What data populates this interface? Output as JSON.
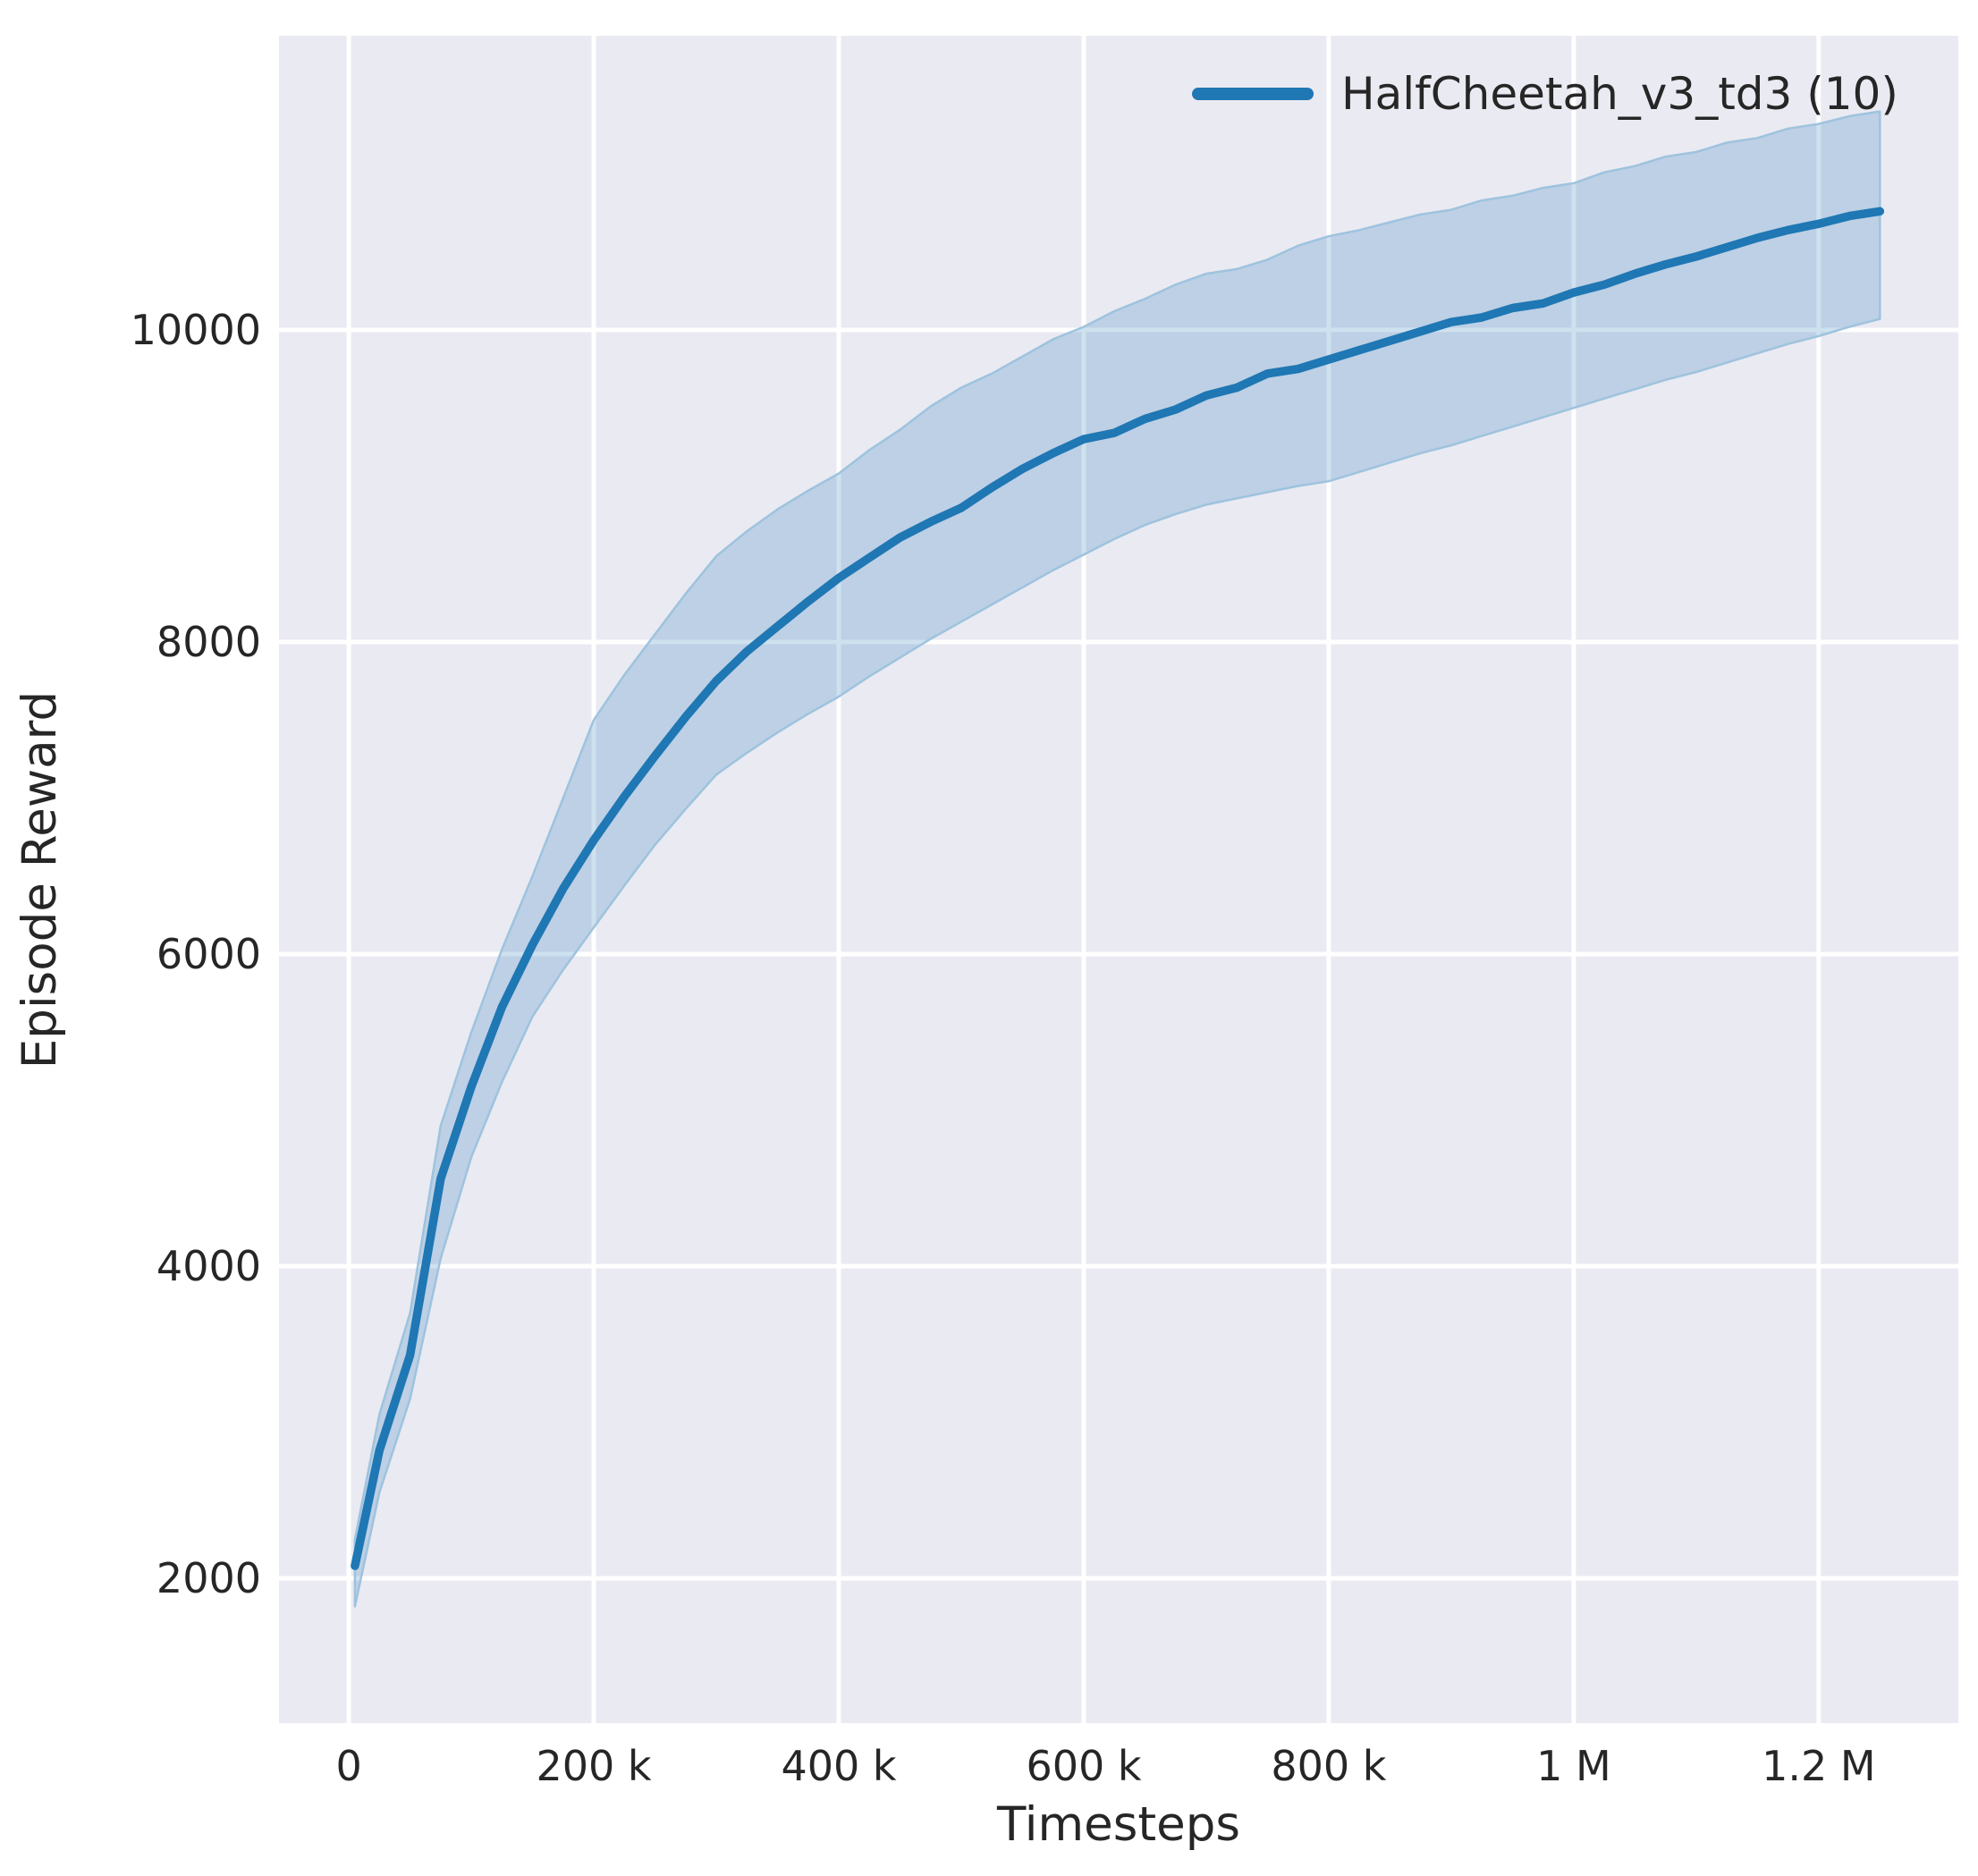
{
  "figure": {
    "background": "#ffffff",
    "plot_background": "#eaeaf2",
    "grid_color": "#ffffff",
    "text_color": "#262626"
  },
  "chart_data": {
    "type": "line",
    "title": "",
    "xlabel": "Timesteps",
    "ylabel": "Episode Reward",
    "grid": true,
    "legend": {
      "position": "upper right",
      "entries": [
        {
          "label": "HalfCheetah_v3_td3 (10)",
          "color": "#1f77b4"
        }
      ]
    },
    "xlim": [
      -57000,
      1314000
    ],
    "ylim": [
      1072,
      11885
    ],
    "xticks": [
      {
        "value": 0,
        "label": "0"
      },
      {
        "value": 200000,
        "label": "200 k"
      },
      {
        "value": 400000,
        "label": "400 k"
      },
      {
        "value": 600000,
        "label": "600 k"
      },
      {
        "value": 800000,
        "label": "800 k"
      },
      {
        "value": 1000000,
        "label": "1 M"
      },
      {
        "value": 1200000,
        "label": "1.2 M"
      }
    ],
    "yticks": [
      {
        "value": 2000,
        "label": "2000"
      },
      {
        "value": 4000,
        "label": "4000"
      },
      {
        "value": 6000,
        "label": "6000"
      },
      {
        "value": 8000,
        "label": "8000"
      },
      {
        "value": 10000,
        "label": "10000"
      }
    ],
    "series": [
      {
        "name": "HalfCheetah_v3_td3 (10)",
        "color": "#1f77b4",
        "band_fill_opacity": 0.22,
        "band_edge_color": "#9ec3de",
        "x": [
          5000,
          25000,
          50000,
          75000,
          100000,
          125000,
          150000,
          175000,
          200000,
          225000,
          250000,
          275000,
          300000,
          325000,
          350000,
          375000,
          400000,
          425000,
          450000,
          475000,
          500000,
          525000,
          550000,
          575000,
          600000,
          625000,
          650000,
          675000,
          700000,
          725000,
          750000,
          775000,
          800000,
          825000,
          850000,
          875000,
          900000,
          925000,
          950000,
          975000,
          1000000,
          1025000,
          1050000,
          1075000,
          1100000,
          1125000,
          1150000,
          1175000,
          1200000,
          1225000,
          1250000
        ],
        "mean": [
          2080,
          2820,
          3430,
          4560,
          5150,
          5660,
          6060,
          6420,
          6730,
          7010,
          7270,
          7520,
          7750,
          7940,
          8100,
          8260,
          8410,
          8540,
          8670,
          8770,
          8860,
          8990,
          9110,
          9210,
          9300,
          9340,
          9430,
          9490,
          9580,
          9630,
          9720,
          9750,
          9810,
          9870,
          9930,
          9990,
          10050,
          10080,
          10140,
          10170,
          10240,
          10290,
          10360,
          10420,
          10470,
          10530,
          10590,
          10640,
          10680,
          10730,
          10760
        ],
        "lower": [
          1820,
          2550,
          3150,
          4050,
          4700,
          5180,
          5600,
          5900,
          6170,
          6440,
          6700,
          6930,
          7150,
          7290,
          7420,
          7540,
          7650,
          7780,
          7900,
          8020,
          8130,
          8240,
          8350,
          8460,
          8560,
          8660,
          8750,
          8820,
          8880,
          8920,
          8960,
          9000,
          9030,
          9090,
          9150,
          9210,
          9260,
          9320,
          9380,
          9440,
          9500,
          9560,
          9620,
          9680,
          9730,
          9790,
          9850,
          9910,
          9960,
          10020,
          10070
        ],
        "upper": [
          2250,
          3050,
          3700,
          4900,
          5500,
          6030,
          6500,
          7000,
          7500,
          7790,
          8050,
          8310,
          8550,
          8710,
          8850,
          8970,
          9080,
          9230,
          9360,
          9510,
          9630,
          9720,
          9830,
          9940,
          10020,
          10120,
          10200,
          10290,
          10360,
          10390,
          10450,
          10540,
          10600,
          10640,
          10690,
          10740,
          10770,
          10830,
          10860,
          10910,
          10940,
          11010,
          11050,
          11110,
          11140,
          11200,
          11230,
          11290,
          11320,
          11370,
          11400
        ]
      }
    ]
  }
}
